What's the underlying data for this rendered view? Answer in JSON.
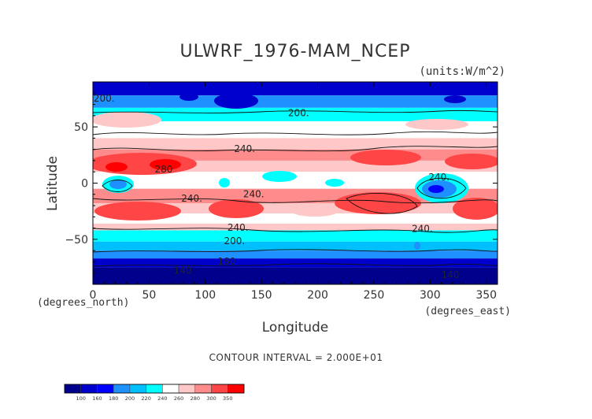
{
  "chart_data": {
    "type": "heatmap",
    "title": "ULWRF_1976-MAM_NCEP",
    "units": "(units:W/m^2)",
    "xlabel": "Longitude",
    "ylabel": "Latitude",
    "x_unit_note": "(degrees_east)",
    "y_unit_note": "(degrees_north)",
    "xlim": [
      0,
      360
    ],
    "ylim": [
      -90,
      90
    ],
    "x_ticks": [
      0,
      50,
      100,
      150,
      200,
      250,
      300,
      350
    ],
    "y_ticks": [
      -50,
      0,
      50
    ],
    "contour_interval_text": "CONTOUR INTERVAL = 2.000E+01",
    "contour_labels": [
      {
        "text": "200.",
        "lon": 10,
        "lat": 75
      },
      {
        "text": "200.",
        "lon": 183,
        "lat": 62
      },
      {
        "text": "240.",
        "lon": 135,
        "lat": 30
      },
      {
        "text": "280",
        "lon": 63,
        "lat": 12
      },
      {
        "text": "240.",
        "lon": 88,
        "lat": -14
      },
      {
        "text": "240.",
        "lon": 143,
        "lat": -10
      },
      {
        "text": "240.",
        "lon": 308,
        "lat": 5
      },
      {
        "text": "240.",
        "lon": 293,
        "lat": -41
      },
      {
        "text": "240.",
        "lon": 129,
        "lat": -40
      },
      {
        "text": "200.",
        "lon": 126,
        "lat": -52
      },
      {
        "text": "180",
        "lon": 119,
        "lat": -70
      },
      {
        "text": "140",
        "lon": 80,
        "lat": -78
      },
      {
        "text": "140",
        "lon": 318,
        "lat": -82
      }
    ],
    "colorbar": {
      "tick_labels": [
        "100",
        "160",
        "180",
        "200",
        "220",
        "240",
        "260",
        "280",
        "300",
        "350"
      ],
      "colors": [
        "#00008c",
        "#0000cd",
        "#0000ff",
        "#1e90ff",
        "#00bfff",
        "#00ffff",
        "#ffffff",
        "#ffc8c8",
        "#ff8c8c",
        "#ff4646",
        "#ff0000"
      ]
    }
  }
}
